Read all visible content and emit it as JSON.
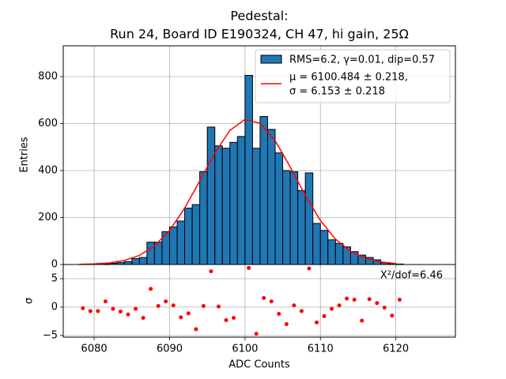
{
  "chart_data": [
    {
      "type": "histogram",
      "title": [
        "Pedestal:",
        "Run 24, Board ID E190324, CH 47, hi gain, 25Ω"
      ],
      "ylabel": "Entries",
      "name": "RMS=6.2, γ=0.01, dip=0.57",
      "color": "#1f77b4",
      "edgecolor": "#000000",
      "bins": [
        6078,
        6079,
        6080,
        6081,
        6082,
        6083,
        6084,
        6085,
        6086,
        6087,
        6088,
        6089,
        6090,
        6091,
        6092,
        6093,
        6094,
        6095,
        6096,
        6097,
        6098,
        6099,
        6100,
        6101,
        6102,
        6103,
        6104,
        6105,
        6106,
        6107,
        6108,
        6109,
        6110,
        6111,
        6112,
        6113,
        6114,
        6115,
        6116,
        6117,
        6118,
        6119,
        6120,
        6121
      ],
      "values": [
        0,
        0,
        2,
        3,
        5,
        8,
        12,
        25,
        30,
        95,
        95,
        140,
        160,
        185,
        240,
        255,
        395,
        585,
        505,
        495,
        520,
        545,
        805,
        495,
        630,
        575,
        475,
        400,
        395,
        315,
        390,
        175,
        145,
        105,
        90,
        75,
        55,
        40,
        30,
        20,
        8,
        4,
        2
      ],
      "fit": {
        "name": [
          "μ = 6100.484 ± 0.218,",
          "σ = 6.153 ± 0.218"
        ],
        "color": "#ff0000",
        "x": [
          6078,
          6080,
          6082,
          6084,
          6086,
          6088,
          6090,
          6092,
          6094,
          6096,
          6098,
          6100,
          6102,
          6104,
          6106,
          6108,
          6110,
          6112,
          6114,
          6116,
          6118,
          6120
        ],
        "values": [
          0.8,
          2.4,
          6.8,
          17.1,
          38.8,
          79.2,
          145,
          240,
          356,
          475,
          571,
          618,
          601,
          527,
          415,
          294,
          187,
          108,
          56,
          26,
          10.8,
          4.1
        ]
      },
      "xlim": [
        6075.9,
        6127.9
      ],
      "ylim": [
        0,
        931
      ],
      "xticks": [
        6080,
        6090,
        6100,
        6110,
        6120
      ],
      "yticks": [
        0,
        200,
        400,
        600,
        800
      ],
      "grid": true,
      "legend": "upper right"
    },
    {
      "type": "scatter",
      "xlabel": "ADC Counts",
      "ylabel": "σ",
      "annotation": "X²/dof=6.46",
      "color": "#ff0000",
      "x": [
        6078.5,
        6079.5,
        6080.5,
        6081.5,
        6082.5,
        6083.5,
        6084.5,
        6085.5,
        6086.5,
        6087.5,
        6088.5,
        6089.5,
        6090.5,
        6091.5,
        6092.5,
        6093.5,
        6094.5,
        6095.5,
        6096.5,
        6097.5,
        6098.5,
        6099.5,
        6100.5,
        6101.5,
        6102.5,
        6103.5,
        6104.5,
        6105.5,
        6106.5,
        6107.5,
        6108.5,
        6109.5,
        6110.5,
        6111.5,
        6112.5,
        6113.5,
        6114.5,
        6115.5,
        6116.5,
        6117.5,
        6118.5,
        6119.5,
        6120.5
      ],
      "values": [
        -0.2,
        -0.7,
        -0.7,
        1.0,
        -0.3,
        -0.8,
        -1.3,
        -0.3,
        -1.9,
        3.2,
        0.2,
        1.0,
        0.3,
        -1.8,
        -1.1,
        -3.9,
        0.2,
        6.3,
        0.1,
        -2.3,
        -1.9,
        null,
        6.9,
        -4.7,
        1.6,
        1.0,
        -1.2,
        -3.0,
        0.3,
        -0.7,
        6.8,
        -2.7,
        -1.6,
        -0.3,
        0.3,
        1.5,
        1.3,
        -2.4,
        1.4,
        0.7,
        -0.1,
        -1.5,
        1.3
      ],
      "xlim": [
        6075.9,
        6127.9
      ],
      "ylim": [
        -5.3,
        7.5
      ],
      "xticks": [
        6080,
        6090,
        6100,
        6110,
        6120
      ],
      "yticks": [
        {
          "value": -5,
          "label": "−5"
        },
        0,
        5
      ],
      "grid": true
    }
  ]
}
